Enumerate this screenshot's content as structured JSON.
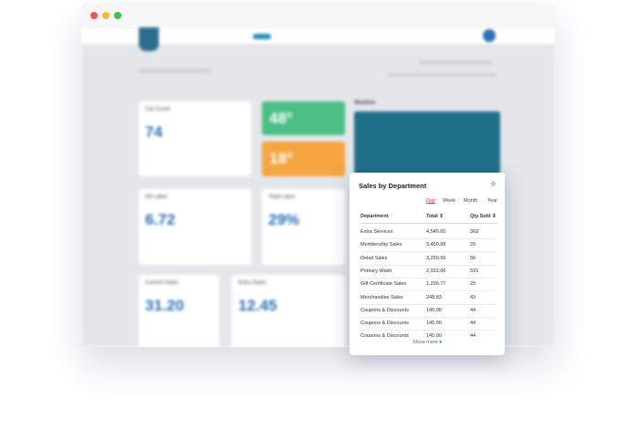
{
  "background": {
    "cards": [
      {
        "title": "Car Count",
        "value": "74"
      },
      {
        "title": "Oil Labor",
        "value": "6.72"
      },
      {
        "title": "Total Labor",
        "value": "29%"
      },
      {
        "title": "Current Sales",
        "value": "31.20"
      },
      {
        "title": "Extra Sales",
        "value": "12.45"
      }
    ],
    "temps": [
      "48°",
      "18°"
    ],
    "weather_title": "Weather"
  },
  "panel": {
    "title": "Sales by Department",
    "tabs": [
      "Day",
      "Week",
      "Month",
      "Year"
    ],
    "table": {
      "headers": [
        "Department",
        "Total ⇕",
        "Qty Sold ⇕"
      ],
      "rows": [
        [
          "Extra Services",
          "4,545.00",
          "362"
        ],
        [
          "Membership Sales",
          "3,450.88",
          "29"
        ],
        [
          "Detail Sales",
          "3,250.99",
          "56"
        ],
        [
          "Primary Wash",
          "2,932.06",
          "515"
        ],
        [
          "Gift Certificate Sales",
          "1,226.77",
          "23"
        ],
        [
          "Merchandise Sales",
          "248.83",
          "43"
        ],
        [
          "Coupons & Discounts",
          "145.00",
          "44"
        ],
        [
          "Coupons & Discounts",
          "145.00",
          "44"
        ],
        [
          "Coupons & Discounts",
          "145.00",
          "44"
        ]
      ]
    },
    "show_more": "Show more ▾"
  }
}
